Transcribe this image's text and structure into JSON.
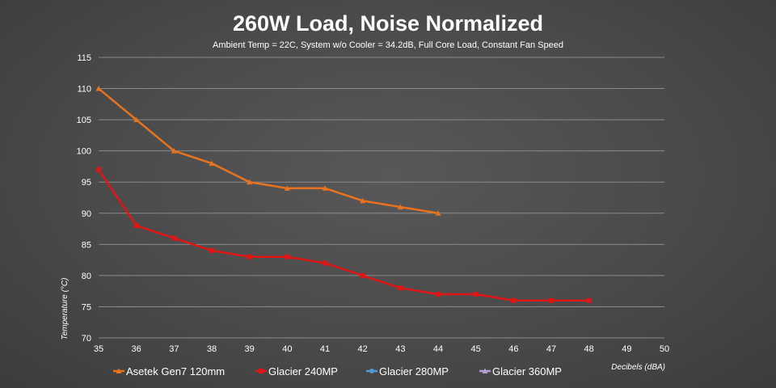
{
  "chart_data": {
    "type": "line",
    "title": "260W Load, Noise Normalized",
    "subtitle": "Ambient Temp = 22C, System w/o Cooler = 34.2dB, Full Core Load, Constant Fan Speed",
    "xlabel": "Decibels (dBA)",
    "ylabel": "Temperature (°C)",
    "x_ticks": [
      35,
      36,
      37,
      38,
      39,
      40,
      41,
      42,
      43,
      44,
      45,
      46,
      47,
      48,
      49,
      50
    ],
    "y_ticks": [
      70,
      75,
      80,
      85,
      90,
      95,
      100,
      105,
      110,
      115
    ],
    "xlim": [
      35,
      50
    ],
    "ylim": [
      70,
      115
    ],
    "grid": true,
    "legend_position": "bottom",
    "series": [
      {
        "name": "Asetek Gen7 120mm",
        "color": "#e8731f",
        "marker": "triangle",
        "x": [
          35,
          36,
          37,
          38,
          39,
          40,
          41,
          42,
          43,
          44
        ],
        "values": [
          110,
          105,
          100,
          98,
          95,
          94,
          94,
          92,
          91,
          90
        ]
      },
      {
        "name": "Glacier 240MP",
        "color": "#e01515",
        "marker": "square",
        "x": [
          35,
          36,
          37,
          38,
          39,
          40,
          41,
          42,
          43,
          44,
          45,
          46,
          47,
          48
        ],
        "values": [
          97,
          88,
          86,
          84,
          83,
          83,
          82,
          80,
          78,
          77,
          77,
          76,
          76,
          76
        ]
      },
      {
        "name": "Glacier 280MP",
        "color": "#4e9bd5",
        "marker": "circle",
        "x": [],
        "values": []
      },
      {
        "name": "Glacier 360MP",
        "color": "#b49fd8",
        "marker": "triangle",
        "x": [],
        "values": []
      }
    ]
  }
}
